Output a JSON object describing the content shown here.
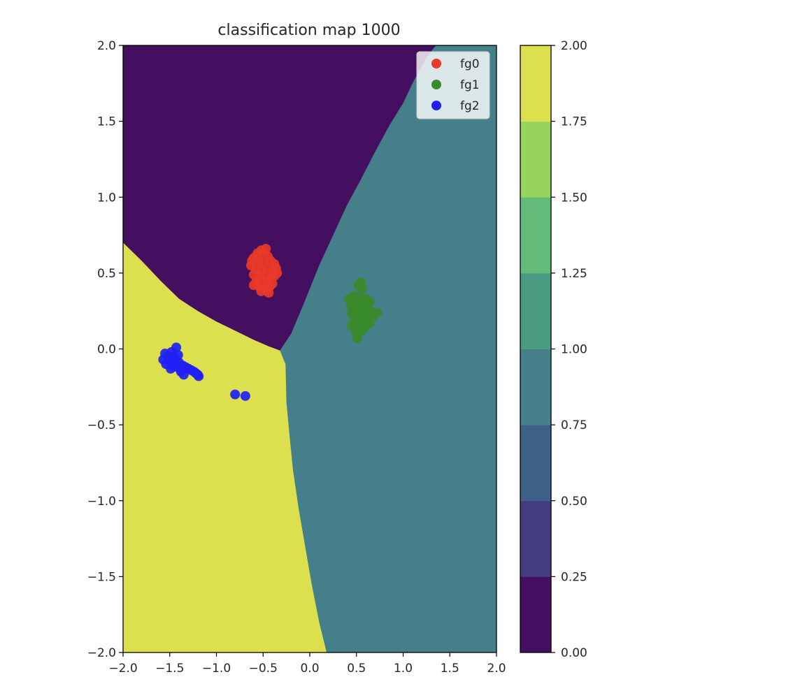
{
  "chart_data": {
    "type": "scatter",
    "title": "classification map 1000",
    "xlabel": "",
    "ylabel": "",
    "xlim": [
      -2.0,
      2.0
    ],
    "ylim": [
      -2.0,
      2.0
    ],
    "x_ticks": [
      "−2.0",
      "−1.5",
      "−1.0",
      "−0.5",
      "0.0",
      "0.5",
      "1.0",
      "1.5",
      "2.0"
    ],
    "y_ticks": [
      "−2.0",
      "−1.5",
      "−1.0",
      "−0.5",
      "0.0",
      "0.5",
      "1.0",
      "1.5",
      "2.0"
    ],
    "grid": false,
    "legend_position": "top-right",
    "background_regions": {
      "description_levels": [
        0,
        1,
        2
      ],
      "class_colors": {
        "0": "#440f5f",
        "1": "#45808a",
        "2": "#dce04e"
      },
      "class0_polygon": [
        [
          -2.0,
          0.7
        ],
        [
          -1.8,
          0.58
        ],
        [
          -1.6,
          0.45
        ],
        [
          -1.4,
          0.33
        ],
        [
          -1.2,
          0.25
        ],
        [
          -1.0,
          0.18
        ],
        [
          -0.8,
          0.12
        ],
        [
          -0.6,
          0.06
        ],
        [
          -0.45,
          0.02
        ],
        [
          -0.32,
          -0.01
        ],
        [
          -0.2,
          0.1
        ],
        [
          -0.05,
          0.32
        ],
        [
          0.1,
          0.55
        ],
        [
          0.25,
          0.75
        ],
        [
          0.4,
          0.95
        ],
        [
          0.55,
          1.12
        ],
        [
          0.7,
          1.3
        ],
        [
          0.85,
          1.47
        ],
        [
          1.0,
          1.62
        ],
        [
          1.1,
          1.75
        ],
        [
          1.25,
          1.92
        ],
        [
          1.35,
          2.0
        ],
        [
          -2.0,
          2.0
        ]
      ],
      "class2_polygon": [
        [
          -2.0,
          0.7
        ],
        [
          -1.8,
          0.58
        ],
        [
          -1.6,
          0.45
        ],
        [
          -1.4,
          0.33
        ],
        [
          -1.2,
          0.25
        ],
        [
          -1.0,
          0.18
        ],
        [
          -0.8,
          0.12
        ],
        [
          -0.6,
          0.06
        ],
        [
          -0.45,
          0.02
        ],
        [
          -0.32,
          -0.01
        ],
        [
          -0.26,
          -0.1
        ],
        [
          -0.25,
          -0.35
        ],
        [
          -0.22,
          -0.55
        ],
        [
          -0.18,
          -0.8
        ],
        [
          -0.12,
          -1.05
        ],
        [
          -0.05,
          -1.3
        ],
        [
          0.02,
          -1.55
        ],
        [
          0.1,
          -1.8
        ],
        [
          0.18,
          -2.0
        ],
        [
          -2.0,
          -2.0
        ]
      ]
    },
    "series": [
      {
        "name": "fg0",
        "color": "#e8392a",
        "points": [
          [
            -0.52,
            0.65
          ],
          [
            -0.5,
            0.63
          ],
          [
            -0.47,
            0.66
          ],
          [
            -0.56,
            0.63
          ],
          [
            -0.6,
            0.6
          ],
          [
            -0.45,
            0.61
          ],
          [
            -0.42,
            0.58
          ],
          [
            -0.55,
            0.58
          ],
          [
            -0.5,
            0.57
          ],
          [
            -0.38,
            0.56
          ],
          [
            -0.63,
            0.55
          ],
          [
            -0.58,
            0.53
          ],
          [
            -0.52,
            0.52
          ],
          [
            -0.46,
            0.53
          ],
          [
            -0.4,
            0.51
          ],
          [
            -0.36,
            0.53
          ],
          [
            -0.6,
            0.49
          ],
          [
            -0.54,
            0.48
          ],
          [
            -0.48,
            0.48
          ],
          [
            -0.42,
            0.47
          ],
          [
            -0.38,
            0.48
          ],
          [
            -0.57,
            0.45
          ],
          [
            -0.51,
            0.44
          ],
          [
            -0.45,
            0.44
          ],
          [
            -0.4,
            0.43
          ],
          [
            -0.6,
            0.42
          ],
          [
            -0.54,
            0.41
          ],
          [
            -0.48,
            0.4
          ],
          [
            -0.43,
            0.41
          ],
          [
            -0.52,
            0.38
          ],
          [
            -0.47,
            0.39
          ],
          [
            -0.56,
            0.43
          ],
          [
            -0.44,
            0.37
          ],
          [
            -0.62,
            0.58
          ],
          [
            -0.35,
            0.5
          ]
        ]
      },
      {
        "name": "fg1",
        "color": "#3a8a2a",
        "points": [
          [
            0.55,
            0.44
          ],
          [
            0.52,
            0.42
          ],
          [
            0.56,
            0.4
          ],
          [
            0.48,
            0.35
          ],
          [
            0.54,
            0.34
          ],
          [
            0.6,
            0.33
          ],
          [
            0.42,
            0.33
          ],
          [
            0.64,
            0.31
          ],
          [
            0.5,
            0.3
          ],
          [
            0.57,
            0.29
          ],
          [
            0.44,
            0.28
          ],
          [
            0.62,
            0.27
          ],
          [
            0.48,
            0.26
          ],
          [
            0.54,
            0.25
          ],
          [
            0.6,
            0.24
          ],
          [
            0.66,
            0.24
          ],
          [
            0.72,
            0.24
          ],
          [
            0.45,
            0.23
          ],
          [
            0.51,
            0.22
          ],
          [
            0.57,
            0.21
          ],
          [
            0.63,
            0.21
          ],
          [
            0.69,
            0.22
          ],
          [
            0.48,
            0.19
          ],
          [
            0.54,
            0.18
          ],
          [
            0.6,
            0.18
          ],
          [
            0.45,
            0.15
          ],
          [
            0.52,
            0.15
          ],
          [
            0.58,
            0.14
          ],
          [
            0.64,
            0.17
          ],
          [
            0.55,
            0.12
          ],
          [
            0.5,
            0.1
          ],
          [
            0.51,
            0.07
          ]
        ]
      },
      {
        "name": "fg2",
        "color": "#1f1ff5",
        "points": [
          [
            -1.43,
            0.01
          ],
          [
            -1.48,
            -0.02
          ],
          [
            -1.55,
            -0.03
          ],
          [
            -1.52,
            -0.05
          ],
          [
            -1.46,
            -0.05
          ],
          [
            -1.41,
            -0.04
          ],
          [
            -1.57,
            -0.07
          ],
          [
            -1.5,
            -0.08
          ],
          [
            -1.44,
            -0.07
          ],
          [
            -1.4,
            -0.09
          ],
          [
            -1.54,
            -0.1
          ],
          [
            -1.47,
            -0.11
          ],
          [
            -1.36,
            -0.11
          ],
          [
            -1.33,
            -0.12
          ],
          [
            -1.42,
            -0.12
          ],
          [
            -1.3,
            -0.13
          ],
          [
            -1.49,
            -0.13
          ],
          [
            -1.27,
            -0.14
          ],
          [
            -1.38,
            -0.15
          ],
          [
            -1.24,
            -0.15
          ],
          [
            -1.22,
            -0.16
          ],
          [
            -1.2,
            -0.17
          ],
          [
            -1.35,
            -0.17
          ],
          [
            -1.19,
            -0.18
          ],
          [
            -0.8,
            -0.3
          ],
          [
            -0.69,
            -0.31
          ]
        ]
      }
    ]
  },
  "colorbar": {
    "ticks": [
      "0.00",
      "0.25",
      "0.50",
      "0.75",
      "1.00",
      "1.25",
      "1.50",
      "1.75",
      "2.00"
    ],
    "bands": [
      "#440f5f",
      "#433d80",
      "#3d6186",
      "#45808a",
      "#4c9c84",
      "#62bb78",
      "#97d45e",
      "#dce04e"
    ]
  }
}
